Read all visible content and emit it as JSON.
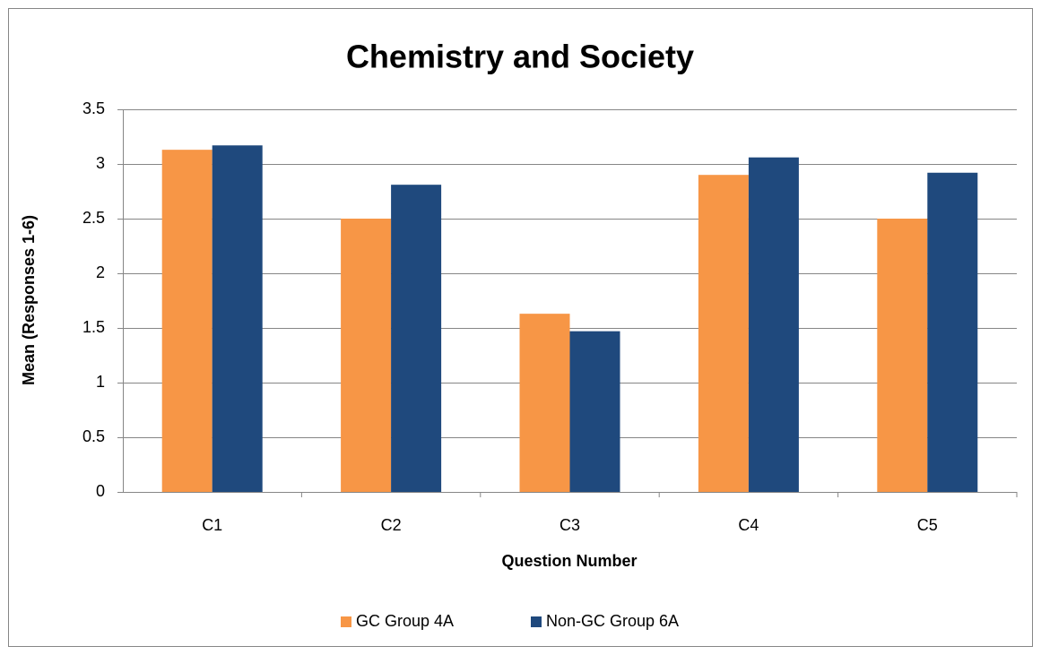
{
  "chart_data": {
    "type": "bar",
    "title": "Chemistry and Society",
    "x_label": "Question Number",
    "y_label": "Mean (Responses 1-6)",
    "categories": [
      "C1",
      "C2",
      "C3",
      "C4",
      "C5"
    ],
    "series": [
      {
        "name": "GC Group 4A",
        "color": "#f79646",
        "values": [
          3.13,
          2.5,
          1.63,
          2.9,
          2.5
        ]
      },
      {
        "name": "Non-GC Group 6A",
        "color": "#1f497d",
        "values": [
          3.17,
          2.81,
          1.47,
          3.06,
          2.92
        ]
      }
    ],
    "ylim": [
      0,
      3.5
    ],
    "yticks": [
      0,
      0.5,
      1,
      1.5,
      2,
      2.5,
      3,
      3.5
    ],
    "grid": true,
    "legend": "bottom"
  }
}
